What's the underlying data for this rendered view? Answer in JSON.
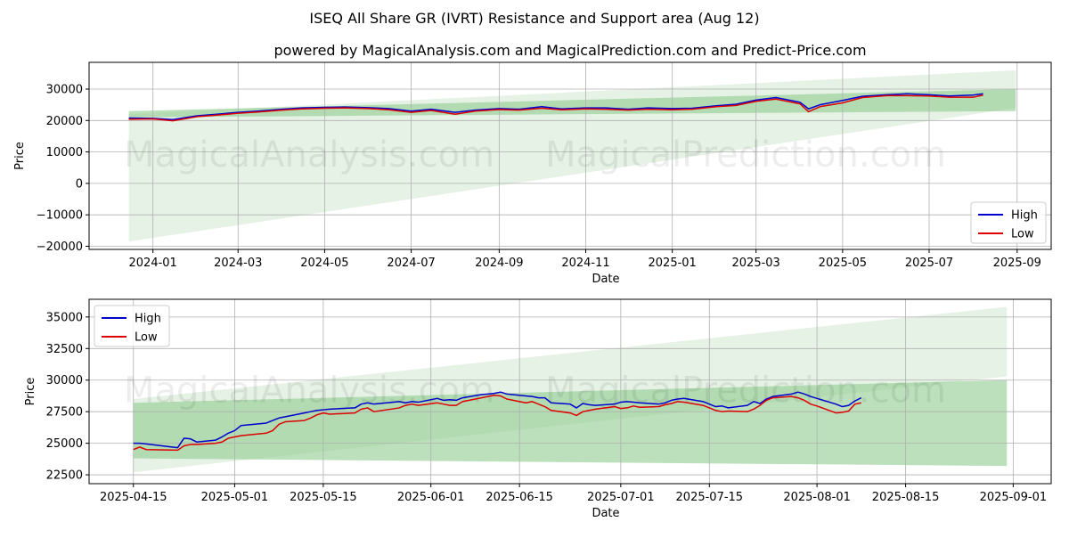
{
  "title": "ISEQ All Share GR (IVRT) Resistance and Support area (Aug 12)",
  "subtitle": "powered by MagicalAnalysis.com and MagicalPrediction.com and Predict-Price.com",
  "watermarks": [
    "MagicalAnalysis.com",
    "MagicalPrediction.com"
  ],
  "colors": {
    "high": "#0000cc",
    "low": "#dd0000",
    "band_dark": "#8fcc8f",
    "band_light": "#cfe8cf",
    "grid": "#b0b0b0"
  },
  "chart_data": [
    {
      "type": "line",
      "xlabel": "Date",
      "ylabel": "Price",
      "ylim": [
        -21000,
        38500
      ],
      "legend": "bottom-right",
      "grid": true,
      "x_ticks": [
        "2024-01",
        "2024-03",
        "2024-05",
        "2024-07",
        "2024-09",
        "2024-11",
        "2025-01",
        "2025-03",
        "2025-05",
        "2025-07",
        "2025-09"
      ],
      "y_ticks": [
        -20000,
        -10000,
        0,
        10000,
        20000,
        30000
      ],
      "y_tick_labels": [
        "−20000",
        "−10000",
        "0",
        "10000",
        "20000",
        "30000"
      ],
      "bands": [
        {
          "kind": "light",
          "x": [
            "2023-12-15",
            "2025-08-31"
          ],
          "lower": [
            -18500,
            24000
          ],
          "upper": [
            22000,
            36000
          ]
        },
        {
          "kind": "dark",
          "x": [
            "2023-12-15",
            "2025-08-31"
          ],
          "lower": [
            21000,
            23000
          ],
          "upper": [
            23000,
            30000
          ]
        }
      ],
      "x": [
        "2023-12-15",
        "2024-01-01",
        "2024-01-15",
        "2024-02-01",
        "2024-02-15",
        "2024-03-01",
        "2024-03-15",
        "2024-04-01",
        "2024-04-15",
        "2024-05-01",
        "2024-05-15",
        "2024-06-01",
        "2024-06-15",
        "2024-07-01",
        "2024-07-15",
        "2024-08-01",
        "2024-08-15",
        "2024-09-01",
        "2024-09-15",
        "2024-10-01",
        "2024-10-15",
        "2024-11-01",
        "2024-11-15",
        "2024-12-01",
        "2024-12-15",
        "2025-01-01",
        "2025-01-15",
        "2025-02-01",
        "2025-02-15",
        "2025-03-01",
        "2025-03-15",
        "2025-04-01",
        "2025-04-07",
        "2025-04-15",
        "2025-05-01",
        "2025-05-15",
        "2025-06-01",
        "2025-06-15",
        "2025-07-01",
        "2025-07-15",
        "2025-08-01",
        "2025-08-08"
      ],
      "series": [
        {
          "name": "High",
          "values": [
            20800,
            20700,
            20300,
            21500,
            22000,
            22600,
            23000,
            23600,
            24000,
            24200,
            24300,
            24100,
            23800,
            23000,
            23600,
            22600,
            23300,
            23800,
            23600,
            24400,
            23700,
            24000,
            24000,
            23600,
            24000,
            23800,
            23900,
            24700,
            25200,
            26500,
            27300,
            25800,
            23700,
            25000,
            26400,
            27700,
            28200,
            28500,
            28200,
            27800,
            28100,
            28500
          ]
        },
        {
          "name": "Low",
          "values": [
            20400,
            20500,
            19900,
            21200,
            21700,
            22300,
            22700,
            23300,
            23700,
            23900,
            24000,
            23800,
            23400,
            22600,
            23200,
            22000,
            23000,
            23500,
            23300,
            23900,
            23400,
            23700,
            23600,
            23300,
            23600,
            23400,
            23600,
            24400,
            24800,
            26100,
            26800,
            25300,
            22800,
            24400,
            25600,
            27300,
            27900,
            27900,
            27800,
            27400,
            27400,
            28100
          ]
        }
      ]
    },
    {
      "type": "line",
      "xlabel": "Date",
      "ylabel": "Price",
      "ylim": [
        21800,
        36400
      ],
      "legend": "top-left",
      "grid": true,
      "x_ticks": [
        "2025-04-15",
        "2025-05-01",
        "2025-05-15",
        "2025-06-01",
        "2025-06-15",
        "2025-07-01",
        "2025-07-15",
        "2025-08-01",
        "2025-08-15",
        "2025-09-01"
      ],
      "y_ticks": [
        22500,
        25000,
        27500,
        30000,
        32500,
        35000
      ],
      "y_tick_labels": [
        "22500",
        "25000",
        "27500",
        "30000",
        "32500",
        "35000"
      ],
      "bands": [
        {
          "kind": "light",
          "x": [
            "2025-04-15",
            "2025-08-31"
          ],
          "lower": [
            22700,
            30300
          ],
          "upper": [
            28500,
            35800
          ]
        },
        {
          "kind": "dark",
          "x": [
            "2025-04-15",
            "2025-08-31"
          ],
          "lower": [
            23800,
            23200
          ],
          "upper": [
            28200,
            30000
          ]
        }
      ],
      "x": [
        "2025-04-15",
        "2025-04-16",
        "2025-04-17",
        "2025-04-22",
        "2025-04-23",
        "2025-04-24",
        "2025-04-25",
        "2025-04-28",
        "2025-04-29",
        "2025-04-30",
        "2025-05-01",
        "2025-05-02",
        "2025-05-06",
        "2025-05-07",
        "2025-05-08",
        "2025-05-09",
        "2025-05-12",
        "2025-05-13",
        "2025-05-14",
        "2025-05-15",
        "2025-05-16",
        "2025-05-20",
        "2025-05-21",
        "2025-05-22",
        "2025-05-23",
        "2025-05-27",
        "2025-05-28",
        "2025-05-29",
        "2025-05-30",
        "2025-06-02",
        "2025-06-03",
        "2025-06-04",
        "2025-06-05",
        "2025-06-06",
        "2025-06-09",
        "2025-06-10",
        "2025-06-11",
        "2025-06-12",
        "2025-06-13",
        "2025-06-16",
        "2025-06-17",
        "2025-06-18",
        "2025-06-19",
        "2025-06-20",
        "2025-06-23",
        "2025-06-24",
        "2025-06-25",
        "2025-06-26",
        "2025-06-27",
        "2025-06-30",
        "2025-07-01",
        "2025-07-02",
        "2025-07-03",
        "2025-07-04",
        "2025-07-07",
        "2025-07-08",
        "2025-07-09",
        "2025-07-10",
        "2025-07-11",
        "2025-07-14",
        "2025-07-15",
        "2025-07-16",
        "2025-07-17",
        "2025-07-18",
        "2025-07-21",
        "2025-07-22",
        "2025-07-23",
        "2025-07-24",
        "2025-07-25",
        "2025-07-28",
        "2025-07-29",
        "2025-07-30",
        "2025-07-31",
        "2025-08-01",
        "2025-08-04",
        "2025-08-05",
        "2025-08-06",
        "2025-08-07",
        "2025-08-08"
      ],
      "series": [
        {
          "name": "High",
          "values": [
            25000,
            25000,
            24950,
            24650,
            25400,
            25350,
            25100,
            25250,
            25500,
            25800,
            26000,
            26400,
            26600,
            26800,
            27000,
            27100,
            27400,
            27500,
            27600,
            27650,
            27700,
            27800,
            28100,
            28200,
            28100,
            28300,
            28200,
            28300,
            28250,
            28550,
            28400,
            28450,
            28400,
            28600,
            28850,
            28900,
            28950,
            29050,
            28900,
            28750,
            28700,
            28600,
            28600,
            28200,
            28100,
            27800,
            28150,
            28050,
            28000,
            28100,
            28250,
            28300,
            28250,
            28200,
            28100,
            28200,
            28400,
            28500,
            28550,
            28300,
            28100,
            27900,
            27950,
            27800,
            28000,
            28300,
            28150,
            28500,
            28700,
            28900,
            29050,
            28900,
            28700,
            28550,
            28100,
            27900,
            28000,
            28350,
            28600
          ]
        },
        {
          "name": "Low",
          "values": [
            24500,
            24700,
            24500,
            24450,
            24800,
            24900,
            24900,
            25000,
            25100,
            25400,
            25500,
            25600,
            25800,
            26000,
            26500,
            26700,
            26800,
            27000,
            27250,
            27400,
            27300,
            27400,
            27700,
            27800,
            27500,
            27800,
            28000,
            28100,
            28000,
            28200,
            28100,
            28000,
            28000,
            28300,
            28600,
            28700,
            28800,
            28750,
            28500,
            28200,
            28300,
            28100,
            27900,
            27600,
            27400,
            27200,
            27500,
            27600,
            27700,
            27900,
            27750,
            27800,
            27950,
            27850,
            27900,
            28050,
            28150,
            28300,
            28250,
            28000,
            27800,
            27600,
            27500,
            27550,
            27500,
            27700,
            28000,
            28400,
            28600,
            28700,
            28600,
            28400,
            28100,
            27950,
            27400,
            27450,
            27550,
            28100,
            28200
          ]
        }
      ]
    }
  ]
}
